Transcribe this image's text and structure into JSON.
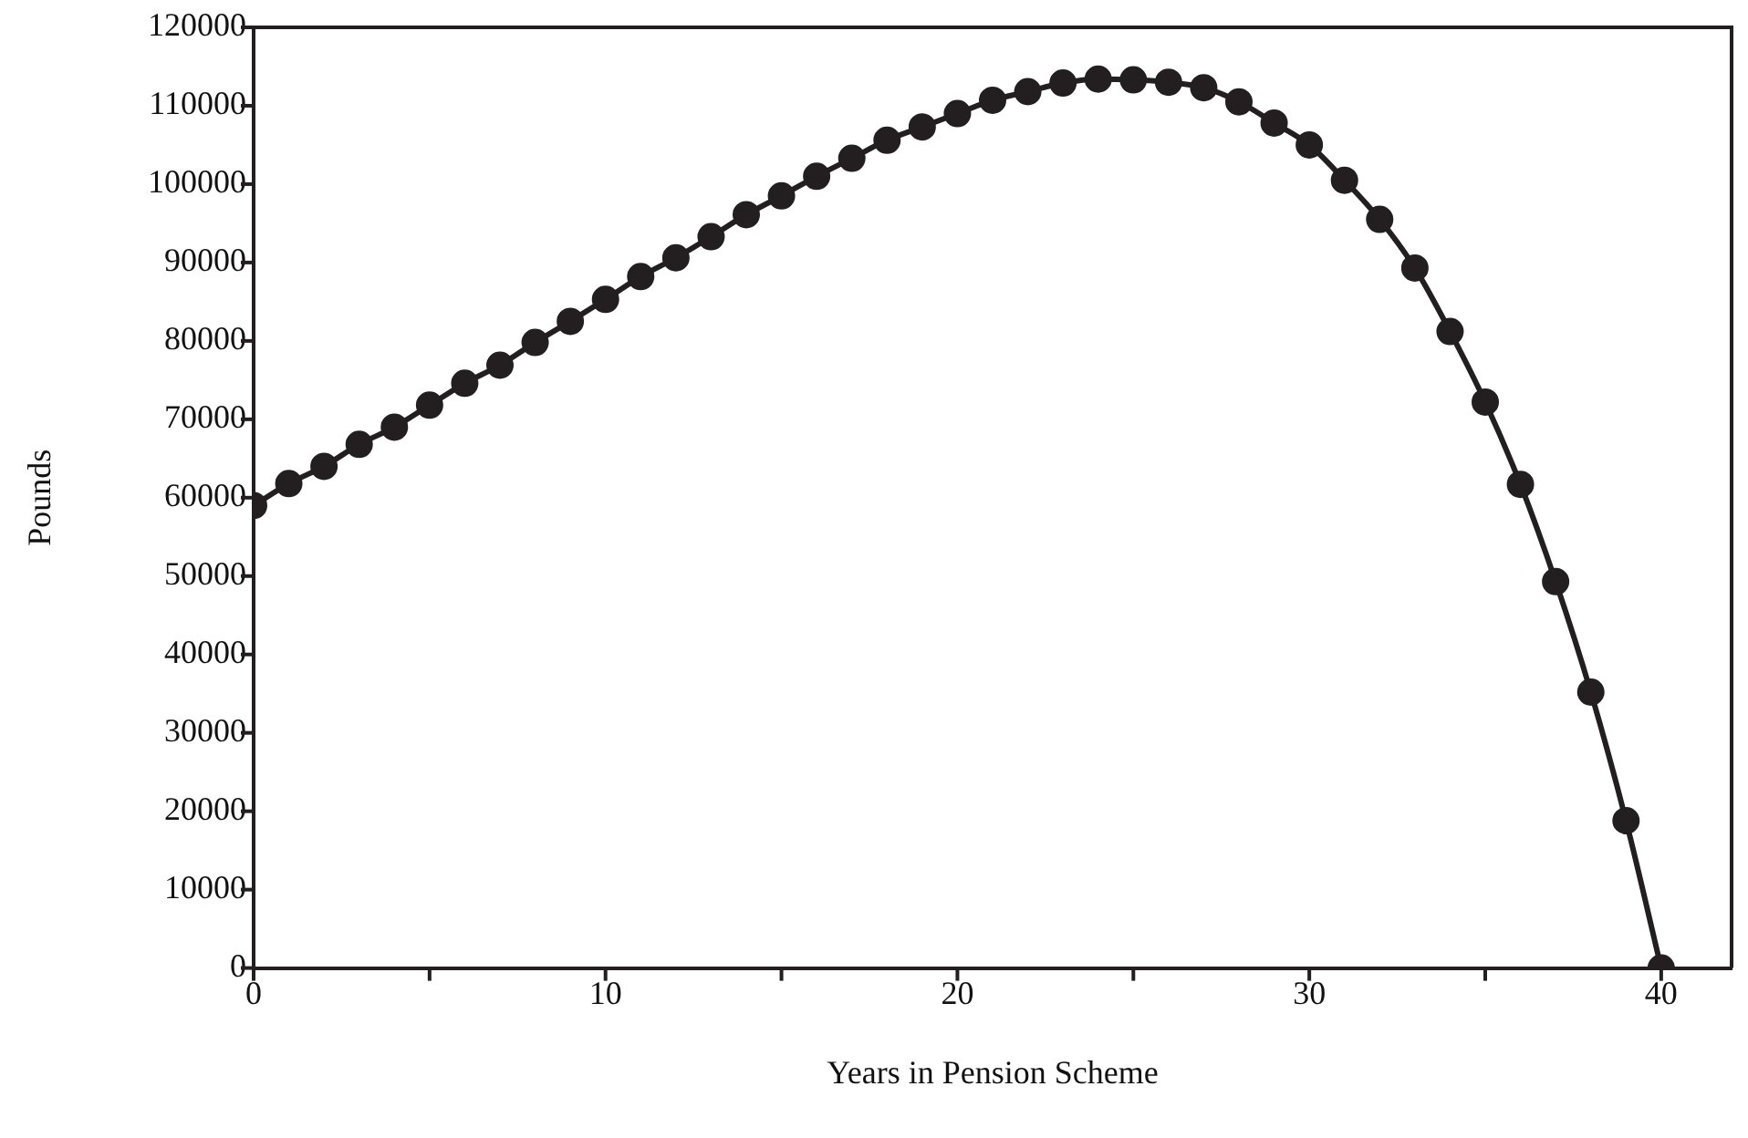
{
  "chart_data": {
    "type": "line",
    "xlabel": "Years in Pension Scheme",
    "ylabel": "Pounds",
    "x": [
      0,
      1,
      2,
      3,
      4,
      5,
      6,
      7,
      8,
      9,
      10,
      11,
      12,
      13,
      14,
      15,
      16,
      17,
      18,
      19,
      20,
      21,
      22,
      23,
      24,
      25,
      26,
      27,
      28,
      29,
      30,
      31,
      32,
      33,
      34,
      35,
      36,
      37,
      38,
      39,
      40
    ],
    "series": [
      {
        "color": "#231f20",
        "values": [
          59000,
          61800,
          64000,
          66800,
          69000,
          71800,
          74600,
          76900,
          79800,
          82500,
          85300,
          88200,
          90600,
          93300,
          96100,
          98500,
          101000,
          103300,
          105600,
          107300,
          109000,
          110700,
          111800,
          112900,
          113400,
          113300,
          113000,
          112300,
          110500,
          107800,
          105000,
          100500,
          95500,
          89300,
          81200,
          72200,
          61700,
          49300,
          35200,
          18800,
          0
        ]
      }
    ],
    "xlim": [
      0,
      42
    ],
    "xticks": [
      0,
      {
        "value": 5,
        "label": null
      },
      10,
      {
        "value": 15,
        "label": null
      },
      20,
      {
        "value": 25,
        "label": null
      },
      30,
      {
        "value": 35,
        "label": null
      },
      40
    ],
    "ylim": [
      0,
      120000
    ],
    "yticks": [
      0,
      10000,
      20000,
      30000,
      40000,
      50000,
      60000,
      70000,
      80000,
      90000,
      100000,
      110000,
      120000
    ],
    "grid": false,
    "legend": false,
    "marker": "circle",
    "line_style": "solid"
  }
}
